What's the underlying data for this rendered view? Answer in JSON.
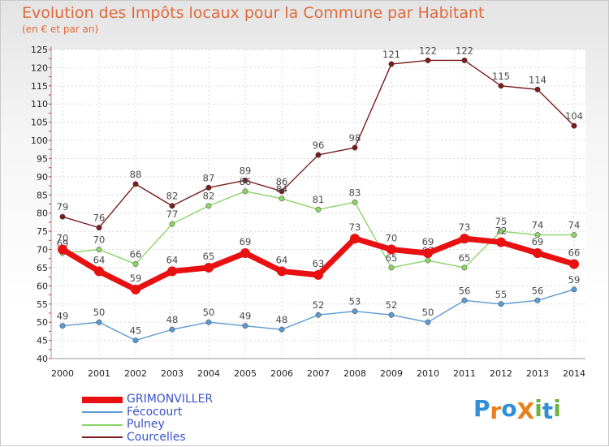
{
  "header": {
    "title": "Evolution des Impôts locaux pour la Commune par Habitant",
    "subtitle": "(en € et par an)"
  },
  "logo": {
    "text": "ProXiti",
    "letters": [
      "P",
      "r",
      "o",
      "X",
      "i",
      "t",
      "i"
    ],
    "colors": [
      "#2f8fd8",
      "#e8801e",
      "#2f8fd8",
      "#e8801e",
      "#6cb33f",
      "#2f8fd8",
      "#6cb33f"
    ]
  },
  "chart_data": {
    "type": "line",
    "title": "Evolution des Impôts locaux pour la Commune par Habitant",
    "ylabel": "(en € et par an)",
    "xlabel": "",
    "ylim": [
      40,
      125
    ],
    "yticks": [
      40,
      45,
      50,
      55,
      60,
      65,
      70,
      75,
      80,
      85,
      90,
      95,
      100,
      105,
      110,
      115,
      120,
      125
    ],
    "x": [
      "2000",
      "2001",
      "2002",
      "2003",
      "2004",
      "2005",
      "2006",
      "2007",
      "2008",
      "2009",
      "2010",
      "2011",
      "2012",
      "2013",
      "2014"
    ],
    "grid": true,
    "series": [
      {
        "name": "Courcelles",
        "color": "#7b1c1c",
        "values": [
          79,
          76,
          88,
          82,
          87,
          89,
          86,
          96,
          98,
          121,
          122,
          122,
          115,
          114,
          104
        ]
      },
      {
        "name": "Pulney",
        "color": "#8cd468",
        "values": [
          69,
          70,
          66,
          77,
          82,
          86,
          84,
          81,
          83,
          65,
          67,
          65,
          75,
          74,
          74
        ]
      },
      {
        "name": "Fécocourt",
        "color": "#5c9ad2",
        "values": [
          49,
          50,
          45,
          48,
          50,
          49,
          48,
          52,
          53,
          52,
          50,
          56,
          55,
          56,
          59
        ]
      },
      {
        "name": "GRIMONVILLER",
        "color": "#e81010",
        "values": [
          70,
          64,
          59,
          64,
          65,
          69,
          64,
          63,
          73,
          70,
          69,
          73,
          72,
          69,
          66
        ]
      }
    ],
    "legend_order": [
      "GRIMONVILLER",
      "Fécocourt",
      "Pulney",
      "Courcelles"
    ],
    "legend_position": "bottom-left"
  }
}
